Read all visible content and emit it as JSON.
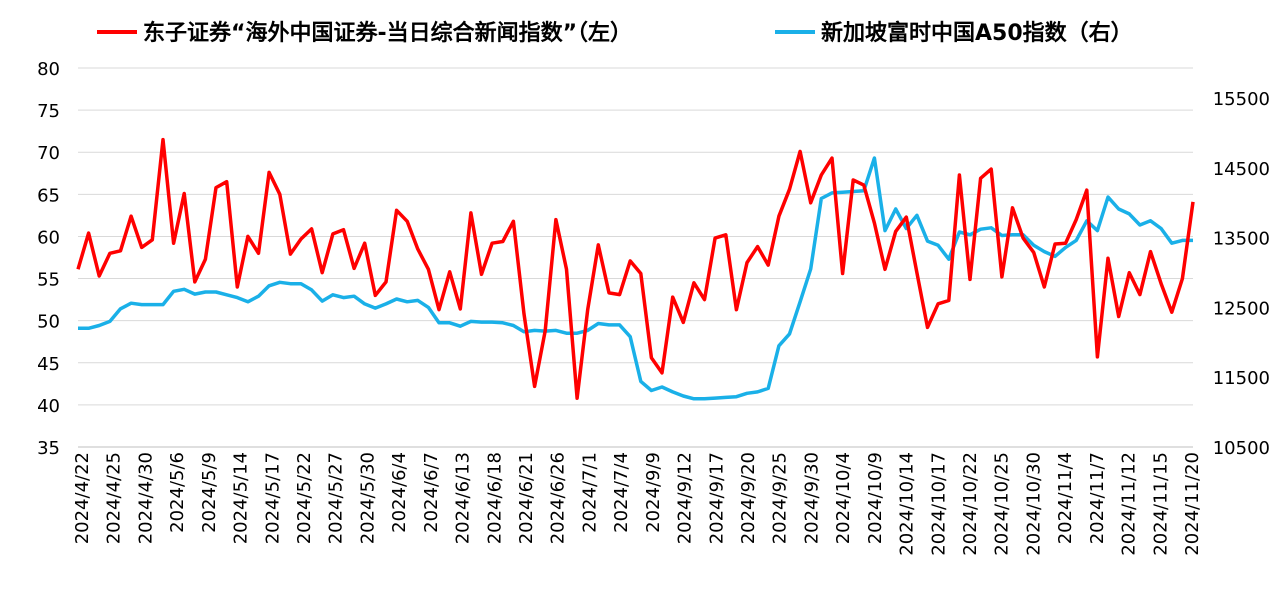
{
  "legend": {
    "left_label": "东子证券“海外中国证券-当日综合新闻指数”（左）",
    "right_label": "新加坡富时中国A50指数（右）"
  },
  "colors": {
    "left_series": "#ff0000",
    "right_series": "#1ab0e8",
    "grid": "#d9d9d9"
  },
  "chart_data": {
    "type": "line",
    "legend_position": "top",
    "grid": true,
    "left_axis": {
      "min": 35,
      "max": 80,
      "ticks": [
        35,
        40,
        45,
        50,
        55,
        60,
        65,
        70,
        75,
        80
      ]
    },
    "right_axis": {
      "min": 10500,
      "max": 15500,
      "ticks": [
        10500,
        11500,
        12500,
        13500,
        14500,
        15500
      ]
    },
    "x_tick_labels": [
      "2024/4/22",
      "2024/4/25",
      "2024/4/30",
      "2024/5/6",
      "2024/5/9",
      "2024/5/14",
      "2024/5/17",
      "2024/5/22",
      "2024/5/27",
      "2024/5/30",
      "2024/6/4",
      "2024/6/7",
      "2024/6/13",
      "2024/6/18",
      "2024/6/21",
      "2024/6/26",
      "2024/7/1",
      "2024/7/4",
      "2024/9/9",
      "2024/9/12",
      "2024/9/17",
      "2024/9/20",
      "2024/9/25",
      "2024/9/30",
      "2024/10/4",
      "2024/10/9",
      "2024/10/14",
      "2024/10/17",
      "2024/10/22",
      "2024/10/25",
      "2024/10/30",
      "2024/11/4",
      "2024/11/7",
      "2024/11/12",
      "2024/11/15",
      "2024/11/20"
    ],
    "series": [
      {
        "name": "东子证券“海外中国证券-当日综合新闻指数”（左）",
        "axis": "left",
        "values": [
          56.1,
          60.4,
          55.3,
          58.0,
          58.3,
          62.4,
          58.7,
          59.6,
          71.5,
          59.2,
          65.1,
          54.6,
          57.3,
          65.8,
          66.5,
          54.0,
          60.0,
          58.0,
          67.6,
          65.0,
          57.9,
          59.7,
          60.9,
          55.7,
          60.3,
          60.8,
          56.2,
          59.2,
          53.0,
          54.6,
          63.1,
          61.8,
          58.5,
          56.1,
          51.3,
          55.8,
          51.4,
          62.8,
          55.5,
          59.2,
          59.4,
          61.8,
          50.8,
          42.2,
          48.8,
          62.0,
          56.1,
          40.8,
          51.3,
          59.0,
          53.3,
          53.1,
          57.1,
          55.6,
          45.6,
          43.8,
          52.8,
          49.8,
          54.5,
          52.5,
          59.8,
          60.2,
          51.3,
          56.9,
          58.8,
          56.6,
          62.4,
          65.6,
          70.1,
          64.0,
          67.3,
          69.3,
          55.6,
          66.7,
          66.1,
          61.6,
          56.1,
          60.6,
          62.3,
          55.7,
          49.2,
          52.0,
          52.4,
          67.3,
          54.9,
          66.9,
          68.0,
          55.2,
          63.4,
          59.8,
          58.1,
          54.0,
          59.1,
          59.2,
          62.0,
          65.5,
          45.7,
          57.4,
          50.5,
          55.7,
          53.1,
          58.2,
          54.4,
          51.0,
          55.0,
          64.1
        ]
      },
      {
        "name": "新加坡富时中国A50指数（右）",
        "axis": "right",
        "values": [
          12200,
          12200,
          12240,
          12300,
          12480,
          12560,
          12540,
          12540,
          12540,
          12730,
          12760,
          12690,
          12720,
          12720,
          12680,
          12640,
          12580,
          12660,
          12810,
          12860,
          12840,
          12840,
          12750,
          12590,
          12680,
          12640,
          12660,
          12550,
          12490,
          12550,
          12620,
          12580,
          12600,
          12500,
          12280,
          12280,
          12230,
          12300,
          12290,
          12290,
          12280,
          12240,
          12150,
          12170,
          12160,
          12170,
          12130,
          12130,
          12170,
          12270,
          12250,
          12250,
          12080,
          11440,
          11310,
          11360,
          11290,
          11230,
          11190,
          11190,
          11200,
          11210,
          11220,
          11270,
          11290,
          11340,
          11950,
          12120,
          12580,
          13050,
          14060,
          14140,
          14150,
          14160,
          14170,
          14640,
          13600,
          13910,
          13630,
          13820,
          13450,
          13390,
          13190,
          13580,
          13540,
          13620,
          13640,
          13530,
          13540,
          13540,
          13390,
          13300,
          13230,
          13360,
          13460,
          13740,
          13600,
          14080,
          13910,
          13840,
          13680,
          13740,
          13630,
          13420,
          13460,
          13460
        ]
      }
    ]
  }
}
